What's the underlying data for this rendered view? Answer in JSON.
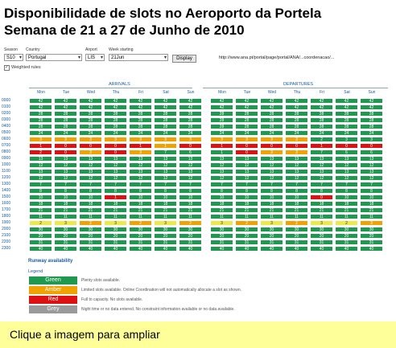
{
  "title_line1": "Disponibilidade de slots no Aeroporto da Portela",
  "title_line2": "Semana de 21 a 27 de Junho de 2010",
  "controls": {
    "season_label": "Season",
    "season_value": "S10",
    "country_label": "Country",
    "country_value": "Portugal",
    "airport_label": "Airport",
    "airport_value": "LIS",
    "week_label": "Week starting",
    "week_value": "21Jun",
    "go_label": "Display",
    "url_text": "http://www.ana.pt/portal/page/portal/ANA/...coordenacao/..."
  },
  "checkbox": {
    "checked": "✓",
    "label": "Weighted rules"
  },
  "arrivals_label": "Arrivals",
  "departures_label": "Departures",
  "days": [
    "Mon",
    "Tue",
    "Wed",
    "Thu",
    "Fri",
    "Sat",
    "Sun",
    "Mon",
    "Tue",
    "Wed",
    "Thu",
    "Fri",
    "Sat",
    "Sun"
  ],
  "times": [
    "0000",
    "0100",
    "0200",
    "0300",
    "0400",
    "0500",
    "0600",
    "0700",
    "0800",
    "0900",
    "1000",
    "1100",
    "1200",
    "1300",
    "1400",
    "1500",
    "1600",
    "1700",
    "1800",
    "1900",
    "2000",
    "2100",
    "2200",
    "2300"
  ],
  "colors": {
    "G": "#1f9950",
    "A": "#f0a200",
    "R": "#dd1111",
    "Y": "#ece94a"
  },
  "grid": [
    {
      "s": "GGGGGGGGGGGGGG",
      "v": [
        "42",
        "42",
        "42",
        "42",
        "42",
        "42",
        "42",
        "42",
        "42",
        "42",
        "42",
        "42",
        "42",
        "42"
      ]
    },
    {
      "s": "GGGGGGGGGGGGGG",
      "v": [
        "42",
        "42",
        "42",
        "42",
        "42",
        "42",
        "42",
        "42",
        "42",
        "42",
        "42",
        "42",
        "42",
        "42"
      ]
    },
    {
      "s": "GGGGGGGGGGGGGG",
      "v": [
        "28",
        "28",
        "28",
        "28",
        "28",
        "28",
        "28",
        "28",
        "28",
        "28",
        "28",
        "28",
        "28",
        "28"
      ]
    },
    {
      "s": "GGGGGGGGGGGGGG",
      "v": [
        "28",
        "28",
        "28",
        "28",
        "28",
        "28",
        "28",
        "28",
        "28",
        "28",
        "28",
        "28",
        "28",
        "28"
      ]
    },
    {
      "s": "GGGGGGGGGGGGGG",
      "v": [
        "28",
        "28",
        "28",
        "28",
        "28",
        "28",
        "28",
        "28",
        "28",
        "28",
        "28",
        "28",
        "28",
        "28"
      ]
    },
    {
      "s": "GGGGGGGGGGGGGG",
      "v": [
        "24",
        "24",
        "24",
        "24",
        "24",
        "24",
        "24",
        "24",
        "24",
        "24",
        "24",
        "24",
        "24",
        "24"
      ]
    },
    {
      "s": "AAAAAAAAAAAGGG",
      "v": [
        "3",
        "3",
        "3",
        "3",
        "3",
        "3",
        "3",
        "3",
        "3",
        "3",
        "3",
        "2",
        "3",
        "3"
      ]
    },
    {
      "s": "RRRRRARRRRRRRR",
      "v": [
        "1",
        "0",
        "0",
        "0",
        "1",
        "1",
        "0",
        "1",
        "0",
        "0",
        "0",
        "1",
        "0",
        "0"
      ]
    },
    {
      "s": "RRARAGGGRAAGGG",
      "v": [
        "2",
        "0",
        "3",
        "0",
        "3",
        "7",
        "6",
        "1",
        "0",
        "3",
        "3",
        "7",
        "6",
        "6"
      ]
    },
    {
      "s": "GGGGGGGGGGGGGG",
      "v": [
        "13",
        "13",
        "13",
        "13",
        "13",
        "13",
        "13",
        "13",
        "13",
        "13",
        "13",
        "13",
        "13",
        "13"
      ]
    },
    {
      "s": "GGGGGGGGGGGGGG",
      "v": [
        "12",
        "12",
        "12",
        "12",
        "12",
        "12",
        "12",
        "12",
        "12",
        "12",
        "12",
        "12",
        "12",
        "12"
      ]
    },
    {
      "s": "GGGGGGGGGGGGGG",
      "v": [
        "13",
        "13",
        "13",
        "13",
        "13",
        "13",
        "13",
        "13",
        "13",
        "13",
        "13",
        "13",
        "13",
        "13"
      ]
    },
    {
      "s": "GGGGGGGGGGGGGG",
      "v": [
        "12",
        "12",
        "12",
        "12",
        "12",
        "12",
        "12",
        "12",
        "12",
        "12",
        "12",
        "12",
        "12",
        "12"
      ]
    },
    {
      "s": "GGGGGGGGGGGGGG",
      "v": [
        "7",
        "7",
        "7",
        "7",
        "7",
        "7",
        "7",
        "7",
        "7",
        "7",
        "7",
        "7",
        "7",
        "7"
      ]
    },
    {
      "s": "GGGGGGGGGGGGGG",
      "v": [
        "8",
        "8",
        "8",
        "8",
        "8",
        "8",
        "8",
        "8",
        "8",
        "8",
        "8",
        "8",
        "8",
        "8"
      ]
    },
    {
      "s": "GGGRGGGGGGGRGG",
      "v": [
        "10",
        "10",
        "10",
        "1",
        "10",
        "10",
        "10",
        "10",
        "10",
        "10",
        "10",
        "0",
        "10",
        "10"
      ]
    },
    {
      "s": "GGGGGGGGGGGGGG",
      "v": [
        "18",
        "18",
        "18",
        "18",
        "18",
        "18",
        "18",
        "18",
        "18",
        "18",
        "18",
        "18",
        "18",
        "18"
      ]
    },
    {
      "s": "GGGGGGGGGGGGGG",
      "v": [
        "21",
        "21",
        "21",
        "21",
        "21",
        "21",
        "21",
        "21",
        "21",
        "21",
        "21",
        "21",
        "21",
        "21"
      ]
    },
    {
      "s": "GGGGGGGGGGGGGG",
      "v": [
        "11",
        "11",
        "11",
        "11",
        "11",
        "11",
        "11",
        "11",
        "11",
        "11",
        "11",
        "11",
        "11",
        "11"
      ]
    },
    {
      "s": "YYAYAYAYAYAYYA",
      "v": [
        "2",
        "3",
        "2",
        "3",
        "2",
        "3",
        "2",
        "3",
        "2",
        "3",
        "2",
        "3",
        "2",
        "3"
      ]
    },
    {
      "s": "GGGGGGGGGGGGGG",
      "v": [
        "30",
        "30",
        "30",
        "30",
        "30",
        "30",
        "30",
        "30",
        "30",
        "30",
        "30",
        "30",
        "30",
        "30"
      ]
    },
    {
      "s": "GGGGGGGGGGGGGG",
      "v": [
        "20",
        "20",
        "20",
        "20",
        "20",
        "20",
        "20",
        "20",
        "20",
        "20",
        "20",
        "20",
        "20",
        "20"
      ]
    },
    {
      "s": "GGGGGGGGGGGGGG",
      "v": [
        "31",
        "31",
        "31",
        "31",
        "31",
        "31",
        "31",
        "31",
        "31",
        "31",
        "31",
        "31",
        "31",
        "31"
      ]
    },
    {
      "s": "GGGGGGGGGGGGGG",
      "v": [
        "40",
        "40",
        "40",
        "40",
        "40",
        "40",
        "40",
        "40",
        "40",
        "40",
        "40",
        "40",
        "40",
        "40"
      ]
    }
  ],
  "availability_title": "Runway availability",
  "legend_label": "Legend",
  "legend": [
    {
      "name": "Green",
      "color": "#1f9950",
      "desc": "Plenty slots available."
    },
    {
      "name": "Amber",
      "color": "#f0a200",
      "desc": "Limited slots available. Online Coordination will not automatically allocate a slot as shown."
    },
    {
      "name": "Red",
      "color": "#dd1111",
      "desc": "Full to capacity. No slots available."
    },
    {
      "name": "Grey",
      "color": "#9a9a9a",
      "desc": "Night time or no data entered. No constraint information available or no data available."
    }
  ],
  "footer_text": "Clique a imagem para ampliar"
}
